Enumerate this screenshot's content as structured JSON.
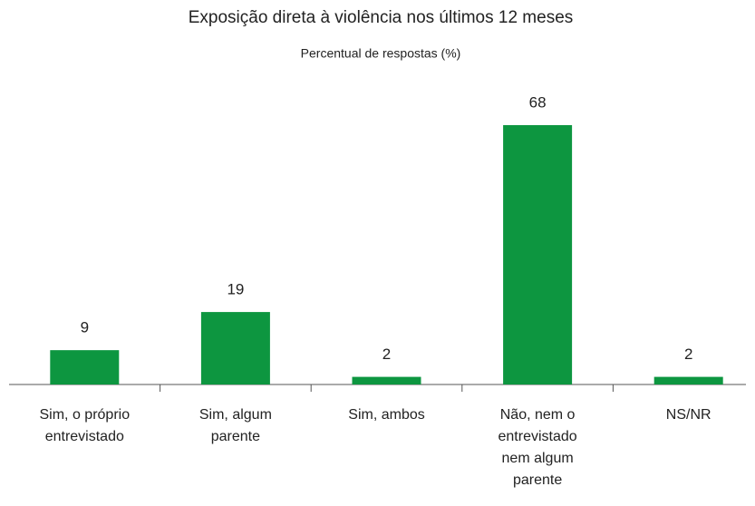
{
  "chart_data": {
    "type": "bar",
    "title": "Exposição direta à violência nos últimos 12 meses",
    "subtitle": "Percentual de respostas (%)",
    "categories": [
      "Sim, o próprio entrevistado",
      "Sim, algum parente",
      "Sim, ambos",
      "Não, nem o entrevistado nem algum parente",
      "NS/NR"
    ],
    "values": [
      9,
      19,
      2,
      68,
      2
    ],
    "color": "#0d9640"
  }
}
